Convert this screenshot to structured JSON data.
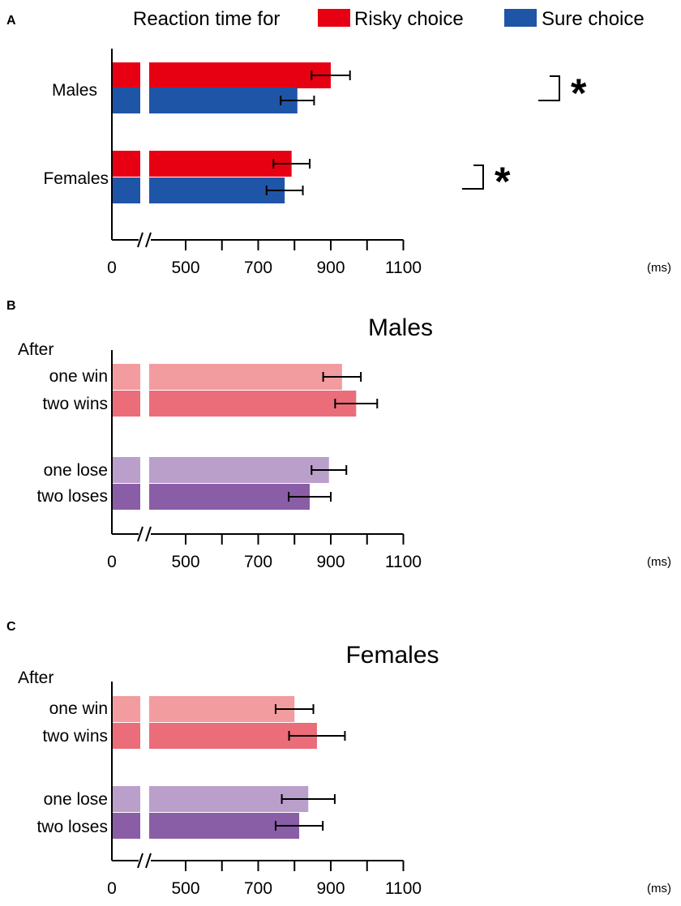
{
  "colors": {
    "risky": "#e60012",
    "sure": "#1f55a6",
    "one_win": "#f29c9f",
    "two_wins": "#eb6d7a",
    "one_lose": "#bb9fcb",
    "two_loses": "#8a5ea6",
    "axis": "#000000"
  },
  "axis": {
    "ticks": [
      0,
      500,
      700,
      900,
      1100
    ],
    "tick_labels": [
      "0",
      "500",
      "700",
      "900",
      "1100"
    ],
    "unit": "(ms)",
    "break": "axis break between 0 and 500"
  },
  "chart_data": [
    {
      "type": "bar",
      "orientation": "horizontal",
      "panel": "A",
      "legend": {
        "title": "Reaction time for",
        "placement": "top",
        "entries": [
          "Risky choice",
          "Sure choice"
        ]
      },
      "xlim": [
        0,
        1100
      ],
      "xunit": "(ms)",
      "categories": [
        "Males",
        "Females"
      ],
      "series": [
        {
          "name": "Risky choice",
          "color_key": "risky",
          "values": [
            900,
            792
          ],
          "errors": [
            53,
            50
          ]
        },
        {
          "name": "Sure choice",
          "color_key": "sure",
          "values": [
            808,
            773
          ],
          "errors": [
            46,
            50
          ]
        }
      ],
      "annotations": [
        {
          "category": "Males",
          "text": "*",
          "meaning": "significant difference"
        },
        {
          "category": "Females",
          "text": "*",
          "meaning": "significant difference"
        }
      ]
    },
    {
      "type": "bar",
      "orientation": "horizontal",
      "panel": "B",
      "title": "Males",
      "group_heading": "After",
      "xlim": [
        0,
        1100
      ],
      "xunit": "(ms)",
      "bars": [
        {
          "label": "one win",
          "color_key": "one_win",
          "value": 931,
          "error": 52
        },
        {
          "label": "two wins",
          "color_key": "two_wins",
          "value": 970,
          "error": 58
        },
        {
          "label": "one lose",
          "color_key": "one_lose",
          "value": 895,
          "error": 48
        },
        {
          "label": "two loses",
          "color_key": "two_loses",
          "value": 842,
          "error": 58
        }
      ]
    },
    {
      "type": "bar",
      "orientation": "horizontal",
      "panel": "C",
      "title": "Females",
      "group_heading": "After",
      "xlim": [
        0,
        1100
      ],
      "xunit": "(ms)",
      "bars": [
        {
          "label": "one win",
          "color_key": "one_win",
          "value": 800,
          "error": 52
        },
        {
          "label": "two wins",
          "color_key": "two_wins",
          "value": 862,
          "error": 77
        },
        {
          "label": "one lose",
          "color_key": "one_lose",
          "value": 838,
          "error": 73
        },
        {
          "label": "two loses",
          "color_key": "two_loses",
          "value": 813,
          "error": 65
        }
      ]
    }
  ]
}
